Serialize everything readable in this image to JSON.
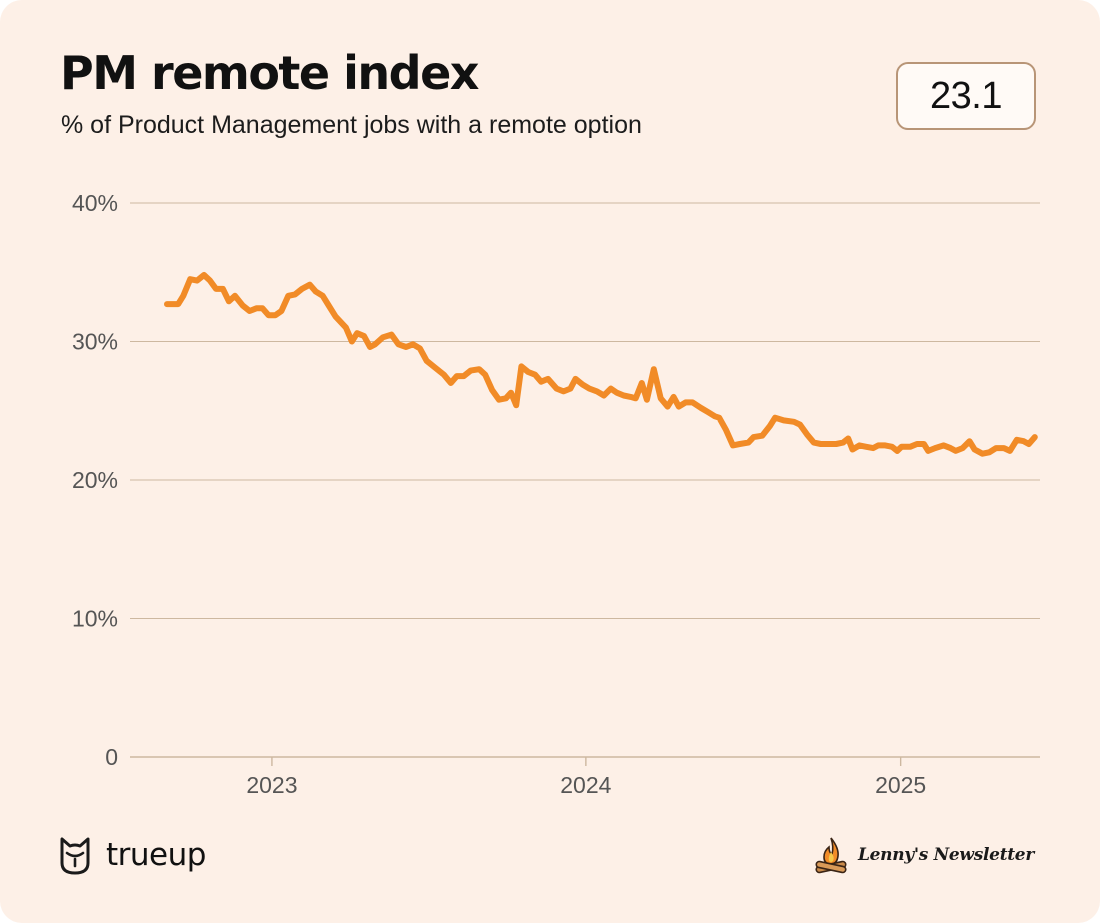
{
  "header": {
    "title": "PM remote index",
    "subtitle": "% of Product Management jobs with a remote option",
    "current_value": "23.1"
  },
  "footer": {
    "left_brand": "trueup",
    "right_brand": "Lenny's Newsletter"
  },
  "colors": {
    "background": "#fdf0e7",
    "line": "#f18b27",
    "grid": "#cdb8a0",
    "axis_text": "#555555",
    "badge_border": "#b89577"
  },
  "icons": {
    "left_logo": "owl-icon",
    "right_logo": "campfire-icon"
  },
  "chart_data": {
    "type": "line",
    "title": "PM remote index",
    "subtitle": "% of Product Management jobs with a remote option",
    "xlabel": "",
    "ylabel": "",
    "x_ticks": [
      "2023",
      "2024",
      "2025"
    ],
    "y_ticks": [
      "0",
      "10%",
      "20%",
      "30%",
      "40%"
    ],
    "ylim": [
      0,
      40
    ],
    "grid": true,
    "series": [
      {
        "values": [
          [
            "2022-09-01",
            32.7
          ],
          [
            "2022-09-14",
            32.7
          ],
          [
            "2022-09-20",
            33.3
          ],
          [
            "2022-09-28",
            34.5
          ],
          [
            "2022-10-06",
            34.4
          ],
          [
            "2022-10-14",
            34.8
          ],
          [
            "2022-10-21",
            34.4
          ],
          [
            "2022-10-28",
            33.8
          ],
          [
            "2022-11-05",
            33.8
          ],
          [
            "2022-11-12",
            32.9
          ],
          [
            "2022-11-19",
            33.3
          ],
          [
            "2022-11-28",
            32.6
          ],
          [
            "2022-12-06",
            32.2
          ],
          [
            "2022-12-14",
            32.4
          ],
          [
            "2022-12-21",
            32.4
          ],
          [
            "2022-12-28",
            31.9
          ],
          [
            "2023-01-05",
            31.9
          ],
          [
            "2023-01-12",
            32.2
          ],
          [
            "2023-01-20",
            33.3
          ],
          [
            "2023-01-28",
            33.4
          ],
          [
            "2023-02-05",
            33.8
          ],
          [
            "2023-02-14",
            34.1
          ],
          [
            "2023-02-21",
            33.6
          ],
          [
            "2023-03-01",
            33.3
          ],
          [
            "2023-03-08",
            32.6
          ],
          [
            "2023-03-16",
            31.8
          ],
          [
            "2023-03-28",
            31.0
          ],
          [
            "2023-04-04",
            30.0
          ],
          [
            "2023-04-10",
            30.6
          ],
          [
            "2023-04-18",
            30.4
          ],
          [
            "2023-04-25",
            29.6
          ],
          [
            "2023-05-01",
            29.8
          ],
          [
            "2023-05-10",
            30.3
          ],
          [
            "2023-05-20",
            30.5
          ],
          [
            "2023-05-28",
            29.8
          ],
          [
            "2023-06-06",
            29.6
          ],
          [
            "2023-06-14",
            29.8
          ],
          [
            "2023-06-22",
            29.5
          ],
          [
            "2023-06-30",
            28.6
          ],
          [
            "2023-07-10",
            28.1
          ],
          [
            "2023-07-20",
            27.6
          ],
          [
            "2023-07-28",
            27.0
          ],
          [
            "2023-08-04",
            27.5
          ],
          [
            "2023-08-12",
            27.5
          ],
          [
            "2023-08-20",
            27.9
          ],
          [
            "2023-08-30",
            28.0
          ],
          [
            "2023-09-06",
            27.6
          ],
          [
            "2023-09-14",
            26.5
          ],
          [
            "2023-09-22",
            25.8
          ],
          [
            "2023-09-30",
            25.9
          ],
          [
            "2023-10-06",
            26.3
          ],
          [
            "2023-10-12",
            25.4
          ],
          [
            "2023-10-18",
            28.2
          ],
          [
            "2023-10-26",
            27.8
          ],
          [
            "2023-11-03",
            27.6
          ],
          [
            "2023-11-10",
            27.1
          ],
          [
            "2023-11-18",
            27.3
          ],
          [
            "2023-11-28",
            26.6
          ],
          [
            "2023-12-06",
            26.4
          ],
          [
            "2023-12-14",
            26.6
          ],
          [
            "2023-12-20",
            27.3
          ],
          [
            "2023-12-28",
            26.9
          ],
          [
            "2024-01-05",
            26.6
          ],
          [
            "2024-01-14",
            26.4
          ],
          [
            "2024-01-22",
            26.1
          ],
          [
            "2024-01-30",
            26.6
          ],
          [
            "2024-02-06",
            26.3
          ],
          [
            "2024-02-14",
            26.1
          ],
          [
            "2024-02-22",
            26.0
          ],
          [
            "2024-02-28",
            25.9
          ],
          [
            "2024-03-06",
            27.0
          ],
          [
            "2024-03-12",
            25.8
          ],
          [
            "2024-03-20",
            28.0
          ],
          [
            "2024-03-28",
            25.9
          ],
          [
            "2024-04-05",
            25.3
          ],
          [
            "2024-04-12",
            26.0
          ],
          [
            "2024-04-18",
            25.3
          ],
          [
            "2024-04-26",
            25.6
          ],
          [
            "2024-05-04",
            25.6
          ],
          [
            "2024-05-14",
            25.2
          ],
          [
            "2024-05-22",
            24.9
          ],
          [
            "2024-05-30",
            24.6
          ],
          [
            "2024-06-04",
            24.5
          ],
          [
            "2024-06-12",
            23.6
          ],
          [
            "2024-06-20",
            22.5
          ],
          [
            "2024-06-28",
            22.6
          ],
          [
            "2024-07-08",
            22.7
          ],
          [
            "2024-07-14",
            23.1
          ],
          [
            "2024-07-24",
            23.2
          ],
          [
            "2024-08-02",
            23.9
          ],
          [
            "2024-08-08",
            24.5
          ],
          [
            "2024-08-18",
            24.3
          ],
          [
            "2024-08-30",
            24.2
          ],
          [
            "2024-09-06",
            24.0
          ],
          [
            "2024-09-14",
            23.3
          ],
          [
            "2024-09-22",
            22.7
          ],
          [
            "2024-09-30",
            22.6
          ],
          [
            "2024-10-10",
            22.6
          ],
          [
            "2024-10-18",
            22.6
          ],
          [
            "2024-10-26",
            22.7
          ],
          [
            "2024-11-01",
            23.0
          ],
          [
            "2024-11-06",
            22.2
          ],
          [
            "2024-11-14",
            22.5
          ],
          [
            "2024-11-22",
            22.4
          ],
          [
            "2024-11-30",
            22.3
          ],
          [
            "2024-12-06",
            22.5
          ],
          [
            "2024-12-14",
            22.5
          ],
          [
            "2024-12-22",
            22.4
          ],
          [
            "2024-12-28",
            22.1
          ],
          [
            "2025-01-02",
            22.4
          ],
          [
            "2025-01-12",
            22.4
          ],
          [
            "2025-01-20",
            22.6
          ],
          [
            "2025-01-28",
            22.6
          ],
          [
            "2025-02-02",
            22.1
          ],
          [
            "2025-02-10",
            22.3
          ],
          [
            "2025-02-20",
            22.5
          ],
          [
            "2025-02-28",
            22.3
          ],
          [
            "2025-03-06",
            22.1
          ],
          [
            "2025-03-14",
            22.3
          ],
          [
            "2025-03-22",
            22.8
          ],
          [
            "2025-03-28",
            22.2
          ],
          [
            "2025-04-06",
            21.9
          ],
          [
            "2025-04-14",
            22.0
          ],
          [
            "2025-04-22",
            22.3
          ],
          [
            "2025-05-01",
            22.3
          ],
          [
            "2025-05-08",
            22.1
          ],
          [
            "2025-05-16",
            22.9
          ],
          [
            "2025-05-24",
            22.8
          ],
          [
            "2025-05-30",
            22.6
          ],
          [
            "2025-06-06",
            23.1
          ]
        ]
      }
    ]
  }
}
